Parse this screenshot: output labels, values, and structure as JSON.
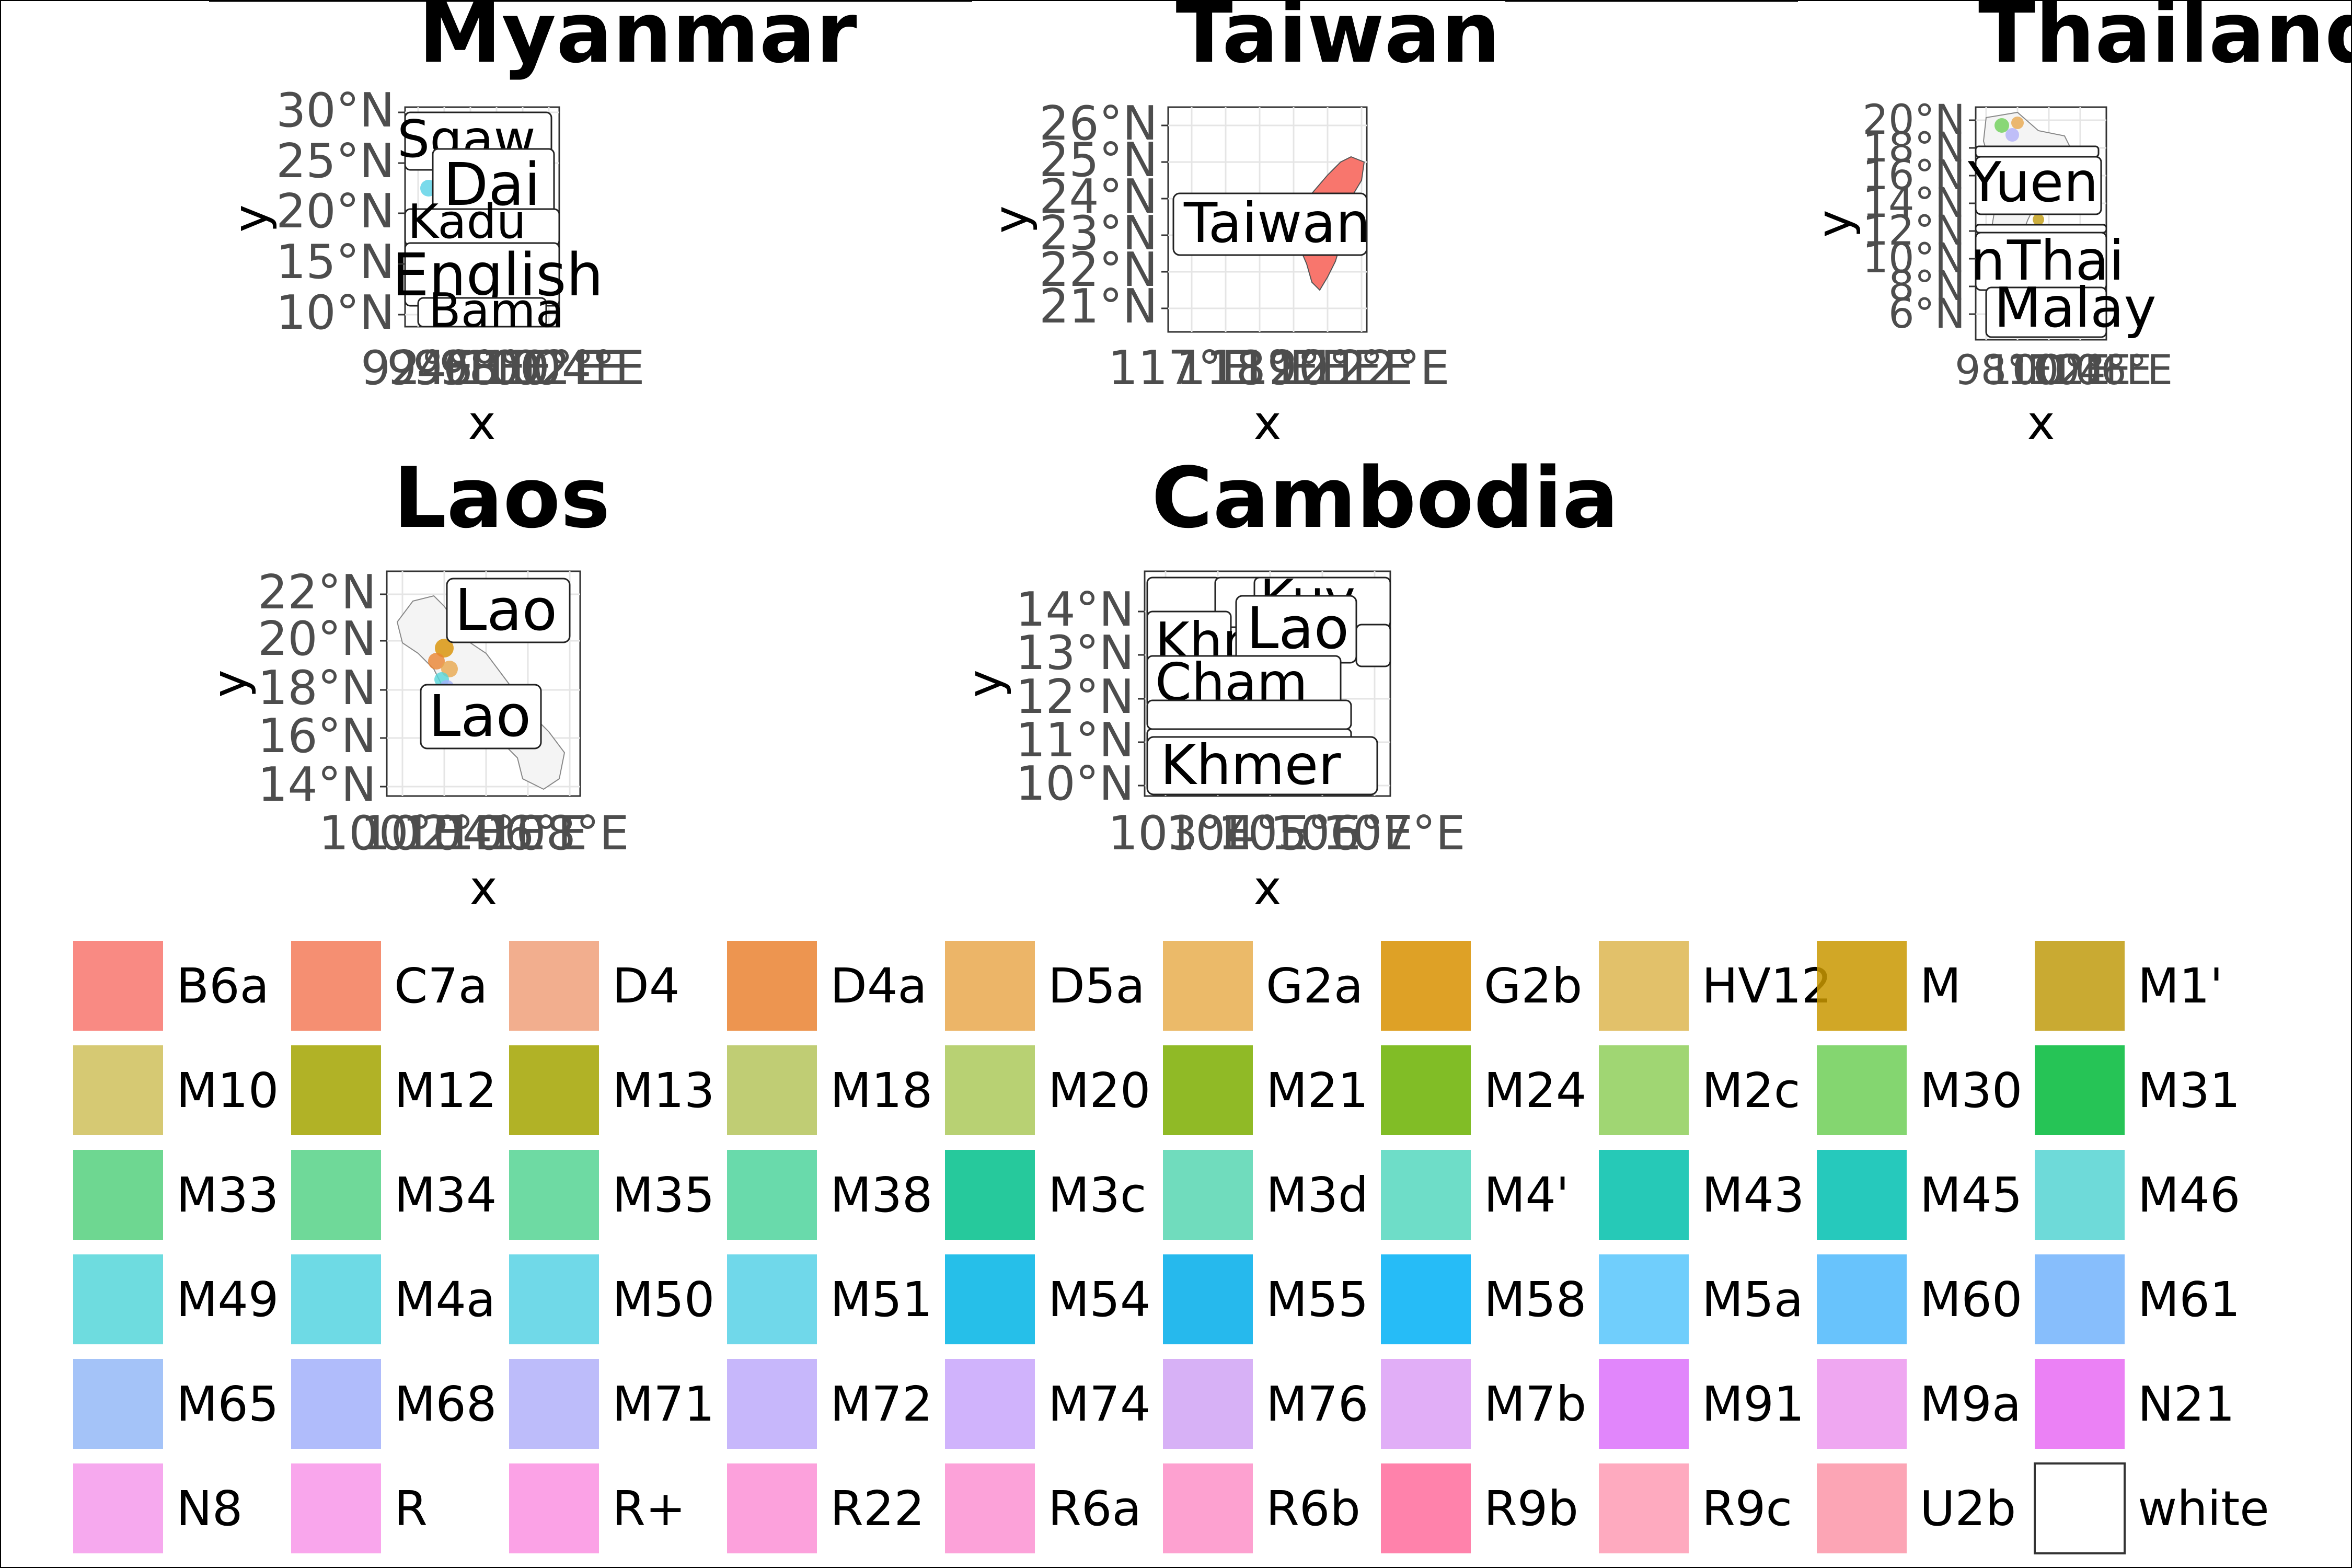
{
  "panels": [
    {
      "title": "Myanmar",
      "xlabel": "x",
      "ylabel": "y",
      "yticks": [
        "30°N",
        "25°N",
        "20°N",
        "15°N",
        "10°N"
      ],
      "xticks": [
        "92°E",
        "94°E",
        "96°E",
        "98°E",
        "100°E",
        "102°E",
        "104°E"
      ],
      "labels": [
        "Sgaw",
        "Dai",
        "Kadu",
        "Bama",
        "English",
        "Bama"
      ]
    },
    {
      "title": "Taiwan",
      "xlabel": "x",
      "ylabel": "y",
      "yticks": [
        "26°N",
        "25°N",
        "24°N",
        "23°N",
        "22°N",
        "21°N"
      ],
      "xticks": [
        "117°E",
        "118°E",
        "119°E",
        "120°E",
        "121°E",
        "122°E"
      ],
      "labels": [
        "Taiwan"
      ]
    },
    {
      "title": "Thailand",
      "xlabel": "x",
      "ylabel": "y",
      "yticks": [
        "20°N",
        "18°N",
        "16°N",
        "14°N",
        "12°N",
        "10°N",
        "8°N",
        "6°N"
      ],
      "xticks": [
        "98°E",
        "100°E",
        "102°E",
        "104°E",
        "106°E"
      ],
      "labels": [
        "Yuen",
        "Thai",
        "Mon",
        "Thai",
        "Malay"
      ]
    },
    {
      "title": "Laos",
      "xlabel": "x",
      "ylabel": "y",
      "yticks": [
        "22°N",
        "20°N",
        "18°N",
        "16°N",
        "14°N"
      ],
      "xticks": [
        "100°E",
        "102°E",
        "104°E",
        "106°E",
        "108°E"
      ],
      "labels": [
        "Lao",
        "Lao"
      ]
    },
    {
      "title": "Cambodia",
      "xlabel": "x",
      "ylabel": "y",
      "yticks": [
        "14°N",
        "13°N",
        "12°N",
        "11°N",
        "10°N"
      ],
      "xticks": [
        "103°E",
        "104°E",
        "105°E",
        "106°E",
        "107°E"
      ],
      "labels": [
        "Khmer",
        "Lao",
        "Kuy",
        "Khmer",
        "Cham",
        "Khmer",
        "Khmer"
      ]
    }
  ],
  "legend": [
    {
      "label": "B6a",
      "color": "#F8766D"
    },
    {
      "label": "C7a",
      "color": "#F37B59"
    },
    {
      "label": "D4",
      "color": "#F0A07A"
    },
    {
      "label": "D4a",
      "color": "#EA8331"
    },
    {
      "label": "D5a",
      "color": "#E9A84E"
    },
    {
      "label": "G2a",
      "color": "#E7AE4F"
    },
    {
      "label": "G2b",
      "color": "#D89000"
    },
    {
      "label": "HV12",
      "color": "#DDB650"
    },
    {
      "label": "M",
      "color": "#C99800"
    },
    {
      "label": "M1'",
      "color": "#C09B0E"
    },
    {
      "label": "M10",
      "color": "#CFBF5B"
    },
    {
      "label": "M12",
      "color": "#A3A500"
    },
    {
      "label": "M13",
      "color": "#A3A500"
    },
    {
      "label": "M18",
      "color": "#B5C45C"
    },
    {
      "label": "M20",
      "color": "#ABC95A"
    },
    {
      "label": "M21",
      "color": "#7CAE00"
    },
    {
      "label": "M24",
      "color": "#6BB100"
    },
    {
      "label": "M2c",
      "color": "#8FCF5A"
    },
    {
      "label": "M30",
      "color": "#6ECF57"
    },
    {
      "label": "M31",
      "color": "#00BA38"
    },
    {
      "label": "M33",
      "color": "#55D07E"
    },
    {
      "label": "M34",
      "color": "#56D287"
    },
    {
      "label": "M35",
      "color": "#55D393"
    },
    {
      "label": "M38",
      "color": "#4FD39C"
    },
    {
      "label": "M3c",
      "color": "#00C08B"
    },
    {
      "label": "M3d",
      "color": "#57D6B2"
    },
    {
      "label": "M4'",
      "color": "#55D7BE"
    },
    {
      "label": "M43",
      "color": "#00BFAA"
    },
    {
      "label": "M45",
      "color": "#00BFB0"
    },
    {
      "label": "M46",
      "color": "#55D4D2"
    },
    {
      "label": "M49",
      "color": "#55D6D9"
    },
    {
      "label": "M4a",
      "color": "#55D4E0"
    },
    {
      "label": "M50",
      "color": "#57D2E4"
    },
    {
      "label": "M51",
      "color": "#57D1E6"
    },
    {
      "label": "M54",
      "color": "#00B4E5"
    },
    {
      "label": "M55",
      "color": "#00ADEA"
    },
    {
      "label": "M58",
      "color": "#00B0F6"
    },
    {
      "label": "M5a",
      "color": "#57C6FC"
    },
    {
      "label": "M60",
      "color": "#4EB8FC"
    },
    {
      "label": "M61",
      "color": "#72B3FC"
    },
    {
      "label": "M65",
      "color": "#94B9F7"
    },
    {
      "label": "M68",
      "color": "#A2B0FA"
    },
    {
      "label": "M71",
      "color": "#B2B0F9"
    },
    {
      "label": "M72",
      "color": "#BDAAFA"
    },
    {
      "label": "M74",
      "color": "#C8A6FB"
    },
    {
      "label": "M76",
      "color": "#D0A3F4"
    },
    {
      "label": "M7b",
      "color": "#DCA0F6"
    },
    {
      "label": "M91",
      "color": "#DC71FA"
    },
    {
      "label": "M9a",
      "color": "#EC98EE"
    },
    {
      "label": "N21",
      "color": "#E76BF3"
    },
    {
      "label": "N8",
      "color": "#F49AEB"
    },
    {
      "label": "R",
      "color": "#F896E9"
    },
    {
      "label": "R+",
      "color": "#FA92E2"
    },
    {
      "label": "R22",
      "color": "#FB90D6"
    },
    {
      "label": "R6a",
      "color": "#FC92D2"
    },
    {
      "label": "R6b",
      "color": "#FD90C8"
    },
    {
      "label": "R9b",
      "color": "#FF6C9C"
    },
    {
      "label": "R9c",
      "color": "#FE9BB4"
    },
    {
      "label": "U2b",
      "color": "#FB95A8"
    },
    {
      "label": "white",
      "color": "#FFFFFF"
    }
  ]
}
